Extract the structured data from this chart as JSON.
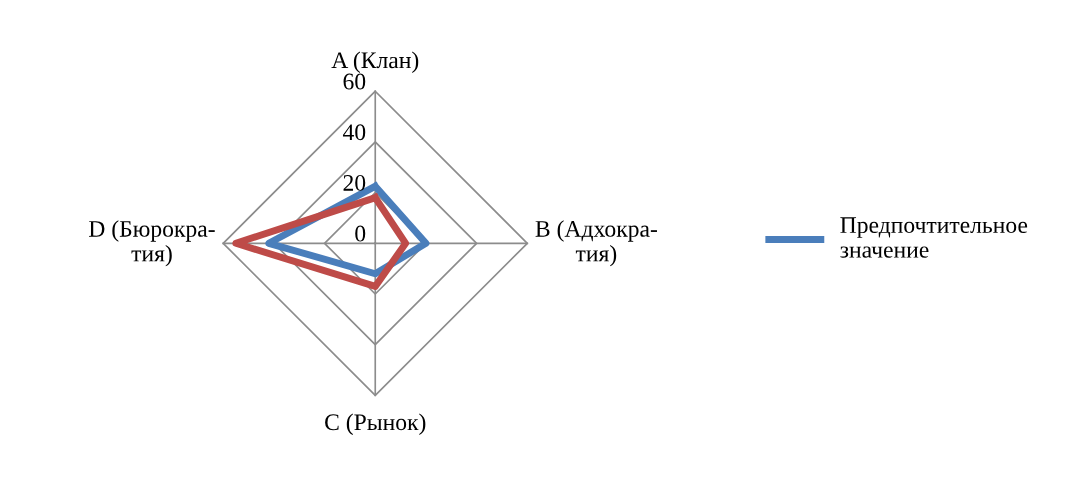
{
  "chart_data": {
    "type": "radar",
    "categories": [
      "A (Клан)",
      "B (Адхокра-\nтия)",
      "C (Рынок)",
      "D (Бюрокра-\nтия)"
    ],
    "series": [
      {
        "name": "Предпочтительное\nзначение",
        "color": "#4a7ebb",
        "values": [
          22.5,
          20,
          12,
          42
        ]
      },
      {
        "color": "#be4b48",
        "values": [
          18,
          12,
          17,
          55
        ]
      }
    ],
    "ylim": [
      0,
      60
    ],
    "yticks": [
      0,
      20,
      40,
      60
    ],
    "grid": true,
    "legend": "right"
  }
}
